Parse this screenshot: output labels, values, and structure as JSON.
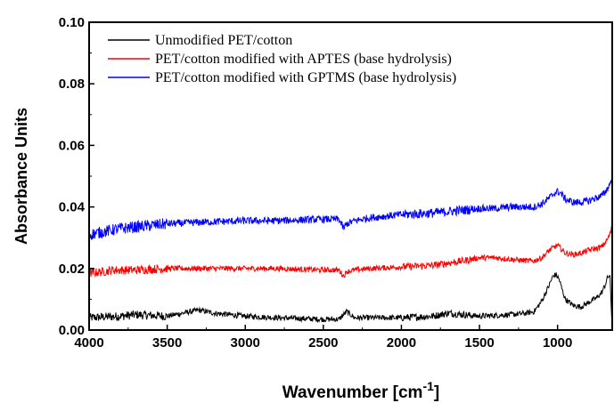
{
  "chart_data": {
    "type": "line",
    "xlabel": "Wavenumber [cm",
    "xlabel_superscript": "-1",
    "xlabel_suffix": "]",
    "ylabel": "Absorbance Units",
    "xlim": [
      4000,
      650
    ],
    "ylim": [
      0.0,
      0.1
    ],
    "x_reversed": true,
    "x_ticks": [
      4000,
      3500,
      3000,
      2500,
      2000,
      1500,
      1000
    ],
    "x_tick_labels": [
      "4000",
      "3500",
      "3000",
      "2500",
      "2000",
      "1500",
      "1000"
    ],
    "y_ticks": [
      0.0,
      0.02,
      0.04,
      0.06,
      0.08,
      0.1
    ],
    "y_tick_labels": [
      "0.00",
      "0.02",
      "0.04",
      "0.06",
      "0.08",
      "0.10"
    ],
    "grid": false,
    "legend_position": "top-left",
    "series": [
      {
        "name": "Unmodified PET/cotton",
        "color": "#000000",
        "x": [
          4000,
          3800,
          3700,
          3500,
          3300,
          3200,
          3000,
          2800,
          2500,
          2400,
          2350,
          2300,
          2000,
          1800,
          1700,
          1500,
          1300,
          1200,
          1150,
          1100,
          1050,
          1030,
          1010,
          990,
          970,
          950,
          900,
          850,
          800,
          750,
          720,
          700,
          680,
          665,
          655,
          650
        ],
        "y": [
          0.004,
          0.0045,
          0.005,
          0.0045,
          0.0065,
          0.0055,
          0.0045,
          0.004,
          0.0035,
          0.0035,
          0.006,
          0.004,
          0.004,
          0.0045,
          0.0055,
          0.0045,
          0.005,
          0.0055,
          0.006,
          0.0095,
          0.015,
          0.0175,
          0.018,
          0.0165,
          0.013,
          0.01,
          0.008,
          0.0075,
          0.009,
          0.0105,
          0.012,
          0.014,
          0.017,
          0.018,
          0.006,
          0.001
        ],
        "noise": 0.0009
      },
      {
        "name": "PET/cotton modified with APTES (base hydrolysis)",
        "color": "#ff0000",
        "x": [
          4000,
          3900,
          3850,
          3700,
          3500,
          3300,
          3000,
          2800,
          2500,
          2400,
          2370,
          2350,
          2300,
          2200,
          2000,
          1800,
          1600,
          1500,
          1400,
          1300,
          1200,
          1150,
          1100,
          1050,
          1020,
          1000,
          980,
          950,
          900,
          850,
          800,
          750,
          720,
          700,
          680,
          665,
          655,
          650
        ],
        "y": [
          0.0185,
          0.019,
          0.0195,
          0.0195,
          0.02,
          0.02,
          0.02,
          0.02,
          0.0195,
          0.0195,
          0.0175,
          0.019,
          0.0195,
          0.02,
          0.0205,
          0.021,
          0.0225,
          0.0235,
          0.0235,
          0.023,
          0.0225,
          0.0225,
          0.0235,
          0.026,
          0.027,
          0.0275,
          0.0265,
          0.025,
          0.0245,
          0.025,
          0.026,
          0.0265,
          0.027,
          0.028,
          0.0295,
          0.031,
          0.033,
          0.035
        ],
        "noise": 0.0009
      },
      {
        "name": "PET/cotton modified with GPTMS (base hydrolysis)",
        "color": "#0000ff",
        "x": [
          4000,
          3900,
          3850,
          3800,
          3700,
          3500,
          3300,
          3000,
          2800,
          2500,
          2400,
          2370,
          2350,
          2300,
          2200,
          2000,
          1800,
          1700,
          1600,
          1500,
          1400,
          1300,
          1200,
          1150,
          1100,
          1050,
          1020,
          1000,
          980,
          950,
          900,
          850,
          800,
          750,
          720,
          700,
          680,
          665,
          655,
          650
        ],
        "y": [
          0.031,
          0.032,
          0.0325,
          0.033,
          0.0335,
          0.0345,
          0.035,
          0.0355,
          0.0355,
          0.036,
          0.036,
          0.033,
          0.0345,
          0.0355,
          0.0365,
          0.0375,
          0.038,
          0.0385,
          0.039,
          0.0395,
          0.0395,
          0.04,
          0.04,
          0.04,
          0.041,
          0.043,
          0.0445,
          0.045,
          0.0445,
          0.0425,
          0.0415,
          0.0415,
          0.042,
          0.043,
          0.0435,
          0.0445,
          0.046,
          0.0475,
          0.049,
          0.0495
        ],
        "noise": 0.0012
      }
    ]
  }
}
